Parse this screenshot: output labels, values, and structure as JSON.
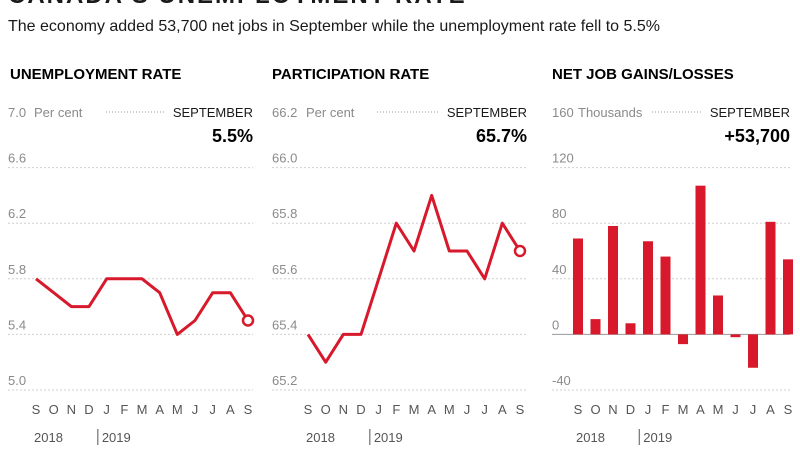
{
  "title": "CANADA'S UNEMPLOYMENT RATE",
  "subtitle": "The economy added 53,700 net jobs in September while the unemployment rate fell to 5.5%",
  "colors": {
    "series": "#d7192b",
    "grid": "#cfcfcf"
  },
  "chart_data": [
    {
      "type": "line",
      "title": "UNEMPLOYMENT RATE",
      "unit": "Per cent",
      "callout_label": "SEPTEMBER",
      "callout_value": "5.5%",
      "x": [
        "S",
        "O",
        "N",
        "D",
        "J",
        "F",
        "M",
        "A",
        "M",
        "J",
        "J",
        "A",
        "S"
      ],
      "years": [
        "2018",
        "2019"
      ],
      "yticks": [
        "7.0",
        "6.6",
        "6.2",
        "5.8",
        "5.4",
        "5.0"
      ],
      "ylim": [
        5.0,
        7.0
      ],
      "values": [
        5.8,
        5.7,
        5.6,
        5.6,
        5.8,
        5.8,
        5.8,
        5.7,
        5.4,
        5.5,
        5.7,
        5.7,
        5.5
      ]
    },
    {
      "type": "line",
      "title": "PARTICIPATION RATE",
      "unit": "Per cent",
      "callout_label": "SEPTEMBER",
      "callout_value": "65.7%",
      "x": [
        "S",
        "O",
        "N",
        "D",
        "J",
        "F",
        "M",
        "A",
        "M",
        "J",
        "J",
        "A",
        "S"
      ],
      "years": [
        "2018",
        "2019"
      ],
      "yticks": [
        "66.2",
        "66.0",
        "65.8",
        "65.6",
        "65.4",
        "65.2"
      ],
      "ylim": [
        65.2,
        66.2
      ],
      "values": [
        65.4,
        65.3,
        65.4,
        65.4,
        65.6,
        65.8,
        65.7,
        65.9,
        65.7,
        65.7,
        65.6,
        65.8,
        65.7
      ]
    },
    {
      "type": "bar",
      "title": "NET JOB GAINS/LOSSES",
      "unit": "Thousands",
      "callout_label": "SEPTEMBER",
      "callout_value": "+53,700",
      "x": [
        "S",
        "O",
        "N",
        "D",
        "J",
        "F",
        "M",
        "A",
        "M",
        "J",
        "J",
        "A",
        "S"
      ],
      "years": [
        "2018",
        "2019"
      ],
      "yticks": [
        "160",
        "120",
        "80",
        "40",
        "0",
        "-40"
      ],
      "ylim": [
        -40,
        160
      ],
      "values": [
        69,
        11,
        78,
        8,
        67,
        56,
        -7,
        107,
        28,
        -2,
        -24,
        81,
        54
      ]
    }
  ]
}
